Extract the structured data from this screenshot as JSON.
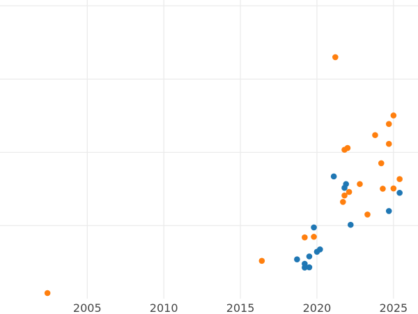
{
  "chart_data": {
    "type": "scatter",
    "title": "",
    "xlabel": "",
    "ylabel": "",
    "xlim": [
      1999.3,
      2026.6
    ],
    "ylim": [
      0,
      100
    ],
    "x_ticks": [
      2005,
      2010,
      2015,
      2020,
      2025
    ],
    "y_gridlines": [
      23,
      48,
      73,
      98
    ],
    "grid": true,
    "legend": "none",
    "colors": {
      "blue": "#1f77b4",
      "orange": "#ff7f0e"
    },
    "series": [
      {
        "color": "#1f77b4",
        "points": [
          {
            "x": 2018.7,
            "y": 11.5
          },
          {
            "x": 2019.2,
            "y": 10.0
          },
          {
            "x": 2019.2,
            "y": 8.7
          },
          {
            "x": 2019.5,
            "y": 8.8
          },
          {
            "x": 2019.5,
            "y": 12.5
          },
          {
            "x": 2019.8,
            "y": 22.4
          },
          {
            "x": 2020.0,
            "y": 14.1
          },
          {
            "x": 2020.2,
            "y": 14.9
          },
          {
            "x": 2021.1,
            "y": 39.8
          },
          {
            "x": 2021.8,
            "y": 35.9
          },
          {
            "x": 2021.9,
            "y": 37.2
          },
          {
            "x": 2022.2,
            "y": 23.3
          },
          {
            "x": 2024.7,
            "y": 28.0
          },
          {
            "x": 2025.4,
            "y": 34.2
          }
        ]
      },
      {
        "color": "#ff7f0e",
        "points": [
          {
            "x": 2002.4,
            "y": 0.0
          },
          {
            "x": 2016.4,
            "y": 11.0
          },
          {
            "x": 2019.2,
            "y": 19.0
          },
          {
            "x": 2019.8,
            "y": 19.2
          },
          {
            "x": 2021.2,
            "y": 80.5
          },
          {
            "x": 2021.7,
            "y": 31.1
          },
          {
            "x": 2021.8,
            "y": 33.3
          },
          {
            "x": 2021.8,
            "y": 48.9
          },
          {
            "x": 2022.0,
            "y": 49.5
          },
          {
            "x": 2022.1,
            "y": 34.5
          },
          {
            "x": 2022.8,
            "y": 37.2
          },
          {
            "x": 2023.3,
            "y": 26.8
          },
          {
            "x": 2023.8,
            "y": 53.9
          },
          {
            "x": 2024.2,
            "y": 44.3
          },
          {
            "x": 2024.3,
            "y": 35.6
          },
          {
            "x": 2024.7,
            "y": 50.9
          },
          {
            "x": 2024.7,
            "y": 57.7
          },
          {
            "x": 2025.0,
            "y": 35.7
          },
          {
            "x": 2025.0,
            "y": 60.6
          },
          {
            "x": 2025.4,
            "y": 38.9
          }
        ]
      }
    ]
  }
}
